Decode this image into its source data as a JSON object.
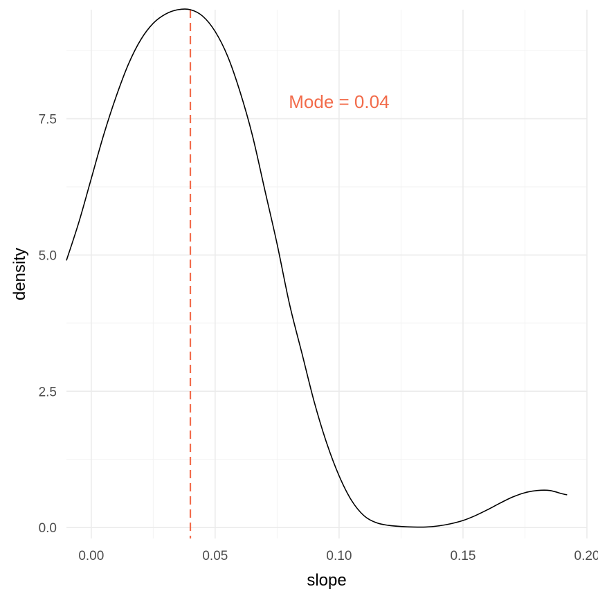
{
  "chart_data": {
    "type": "line",
    "title": "",
    "xlabel": "slope",
    "ylabel": "density",
    "xlim": [
      -0.01,
      0.2
    ],
    "ylim": [
      -0.2,
      9.5
    ],
    "x_ticks": [
      0.0,
      0.05,
      0.1,
      0.15,
      0.2
    ],
    "x_tick_labels": [
      "0.00",
      "0.05",
      "0.10",
      "0.15",
      "0.20"
    ],
    "y_ticks": [
      0.0,
      2.5,
      5.0,
      7.5
    ],
    "y_tick_labels": [
      "0.0",
      "2.5",
      "5.0",
      "7.5"
    ],
    "grid": true,
    "legend": "none",
    "series": [
      {
        "color": "#000000",
        "x": [
          -0.01,
          -0.005,
          0.0,
          0.005,
          0.01,
          0.015,
          0.02,
          0.025,
          0.03,
          0.035,
          0.04,
          0.045,
          0.05,
          0.055,
          0.06,
          0.065,
          0.07,
          0.075,
          0.08,
          0.085,
          0.09,
          0.095,
          0.1,
          0.105,
          0.11,
          0.115,
          0.12,
          0.125,
          0.13,
          0.135,
          0.14,
          0.145,
          0.15,
          0.155,
          0.16,
          0.165,
          0.17,
          0.175,
          0.18,
          0.185,
          0.19,
          0.192
        ],
        "y": [
          4.9,
          5.6,
          6.4,
          7.2,
          7.9,
          8.5,
          8.95,
          9.25,
          9.42,
          9.5,
          9.5,
          9.38,
          9.1,
          8.65,
          8.0,
          7.2,
          6.2,
          5.2,
          4.1,
          3.2,
          2.3,
          1.55,
          0.95,
          0.5,
          0.22,
          0.09,
          0.04,
          0.02,
          0.01,
          0.01,
          0.03,
          0.07,
          0.13,
          0.22,
          0.33,
          0.45,
          0.56,
          0.64,
          0.68,
          0.68,
          0.62,
          0.6
        ]
      }
    ],
    "reference_lines": [
      {
        "axis": "x",
        "value": 0.04,
        "color": "#f26b4a",
        "style": "dashed"
      }
    ],
    "annotations": [
      {
        "text": "Mode = 0.04",
        "x": 0.1,
        "y": 7.7,
        "color": "#f26b4a"
      }
    ]
  }
}
